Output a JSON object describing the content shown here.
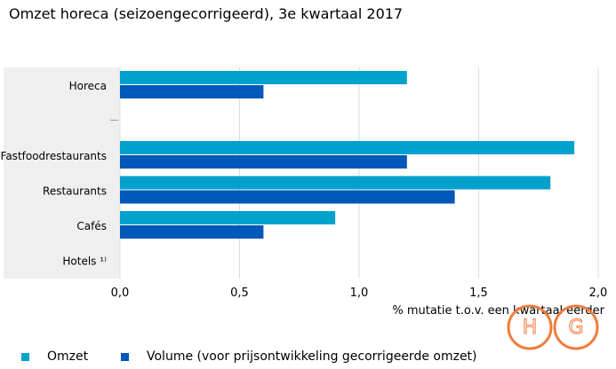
{
  "title": "Omzet horeca (seizoengecorrigeerd), 3e kwartaal 2017",
  "chart_data": {
    "type": "bar",
    "orientation": "horizontal",
    "categories": [
      "Horeca",
      "",
      "Fastfoodrestaurants",
      "Restaurants",
      "Cafés",
      "Hotels ¹⁾"
    ],
    "series": [
      {
        "name": "Omzet",
        "color": "#00a1cd",
        "values": [
          1.2,
          null,
          1.9,
          1.8,
          0.9,
          null
        ]
      },
      {
        "name": "Volume (voor prijsontwikkeling gecorrigeerde omzet)",
        "color": "#0058b8",
        "values": [
          0.6,
          null,
          1.2,
          1.4,
          0.6,
          null
        ]
      }
    ],
    "xlim": [
      0,
      2.0
    ],
    "xticks": [
      "0,0",
      "0,5",
      "1,0",
      "1,5",
      "2,0"
    ],
    "xtick_values": [
      0,
      0.5,
      1.0,
      1.5,
      2.0
    ],
    "xlabel": "% mutatie t.o.v. een kwartaal eerder",
    "ylabel": "",
    "grid": true,
    "legend_position": "bottom"
  },
  "legend": {
    "items": [
      {
        "label": "Omzet",
        "color": "#00a1cd"
      },
      {
        "label": "Volume (voor prijsontwikkeling gecorrigeerde omzet)",
        "color": "#0058b8"
      }
    ]
  },
  "colors": {
    "category_band": "#efefef",
    "gridline": "#dcdcdc",
    "watermark": "#f07c3c"
  },
  "watermark": {
    "letters": [
      "H",
      "G"
    ]
  }
}
